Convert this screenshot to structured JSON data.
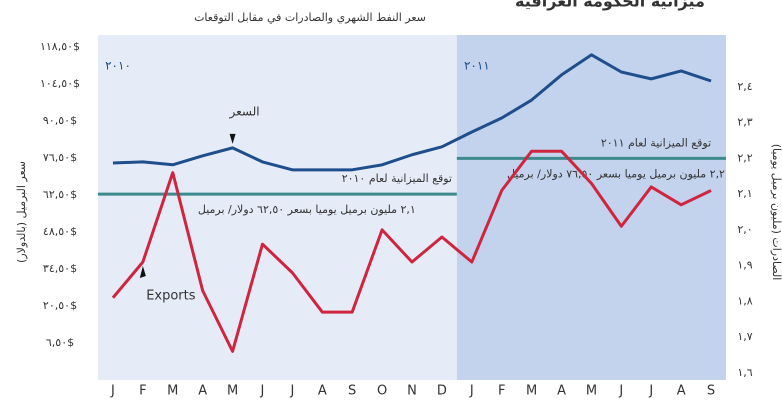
{
  "chart_data": {
    "type": "line",
    "title": "ميزانية الحكومة العراقية",
    "subtitle": "سعر النفط الشهري والصادرات في مقابل التوقعات",
    "ylabel": "سعر البرميل (بالدولار)",
    "y2label": "الصادرات (مليون برميل يوميا)",
    "categories": [
      "J",
      "F",
      "M",
      "A",
      "M",
      "J",
      "J",
      "A",
      "S",
      "O",
      "N",
      "D",
      "J",
      "F",
      "M",
      "A",
      "M",
      "J",
      "J",
      "A",
      "S"
    ],
    "ylim": [
      -7.5,
      123
    ],
    "yticks": [
      {
        "value": 6.5,
        "label": "٦,٥٠$"
      },
      {
        "value": 20.5,
        "label": "٢٠,٥٠$"
      },
      {
        "value": 34.5,
        "label": "٣٤,٥٠$"
      },
      {
        "value": 48.5,
        "label": "٤٨,٥٠$"
      },
      {
        "value": 62.5,
        "label": "٦٢,٥٠$"
      },
      {
        "value": 76.5,
        "label": "٧٦,٥٠$"
      },
      {
        "value": 90.5,
        "label": "٩٠,٥٠$"
      },
      {
        "value": 104.5,
        "label": "١٠٤,٥٠$"
      },
      {
        "value": 118.5,
        "label": "١١٨,٥٠$"
      }
    ],
    "y2lim": [
      1.58,
      2.545
    ],
    "y2ticks": [
      {
        "value": 1.6,
        "label": "١,٦"
      },
      {
        "value": 1.7,
        "label": "١,٧"
      },
      {
        "value": 1.8,
        "label": "١,٨"
      },
      {
        "value": 1.9,
        "label": "١,٩"
      },
      {
        "value": 2.0,
        "label": "٢,٠"
      },
      {
        "value": 2.1,
        "label": "٢,١"
      },
      {
        "value": 2.2,
        "label": "٢,٢"
      },
      {
        "value": 2.3,
        "label": "٢,٣"
      },
      {
        "value": 2.4,
        "label": "٢,٤"
      }
    ],
    "grid": false,
    "series": [
      {
        "name": "السعر",
        "color": "#1f4e8c",
        "values": [
          74.6,
          75.0,
          73.9,
          77.3,
          80.3,
          75.0,
          72.0,
          72.0,
          72.0,
          73.9,
          77.7,
          80.7,
          86.3,
          91.6,
          98.4,
          107.9,
          115.5,
          109.0,
          106.4,
          109.4,
          105.6
        ]
      },
      {
        "name": "Exports",
        "color": "#d0253f",
        "axis": "y2",
        "values": [
          1.81,
          1.91,
          2.16,
          1.83,
          1.66,
          1.96,
          1.88,
          1.77,
          1.77,
          2.0,
          1.91,
          1.98,
          1.91,
          2.11,
          2.22,
          2.22,
          2.13,
          2.01,
          2.12,
          2.07,
          2.11
        ]
      }
    ],
    "periods": [
      {
        "label": "٢٠١٠",
        "budget_title": "توقع الميزانية لعام ٢٠١٠",
        "budget_text": "٢,١ مليون برميل يوميا بسعر ٦٢,٥٠ دولار/ برميل",
        "budget_value": 2.1,
        "axis": "y2",
        "color": "#3d8a8c"
      },
      {
        "label": "٢٠١١",
        "budget_title": "توقع الميزانية لعام ٢٠١١",
        "budget_text": "٢,٢ مليون برميل يوميا بسعر ٧٦,٥٠ دولار/ برميل",
        "budget_value": 2.2,
        "axis": "y2",
        "color": "#3d8a8c"
      }
    ]
  }
}
